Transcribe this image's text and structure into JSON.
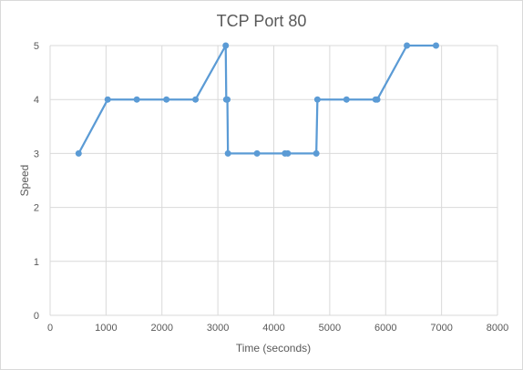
{
  "chart_data": {
    "type": "scatter",
    "title": "TCP Port 80",
    "xlabel": "Time (seconds)",
    "ylabel": "Speed",
    "xlim": [
      0,
      8000
    ],
    "ylim": [
      0,
      5
    ],
    "xticks": [
      0,
      1000,
      2000,
      3000,
      4000,
      5000,
      6000,
      7000,
      8000
    ],
    "yticks": [
      0,
      1,
      2,
      3,
      4,
      5
    ],
    "grid": true,
    "legend": "none",
    "line_color": "#5b9bd5",
    "series": [
      {
        "x": [
          510,
          1030,
          1550,
          2080,
          2600,
          3140,
          3150,
          3170,
          3180,
          3700,
          4200,
          4250,
          4760,
          4780,
          5300,
          5820,
          5850,
          6380,
          6900
        ],
        "y": [
          3,
          4,
          4,
          4,
          4,
          5,
          4,
          4,
          3,
          3,
          3,
          3,
          3,
          4,
          4,
          4,
          4,
          5,
          5
        ]
      }
    ]
  }
}
